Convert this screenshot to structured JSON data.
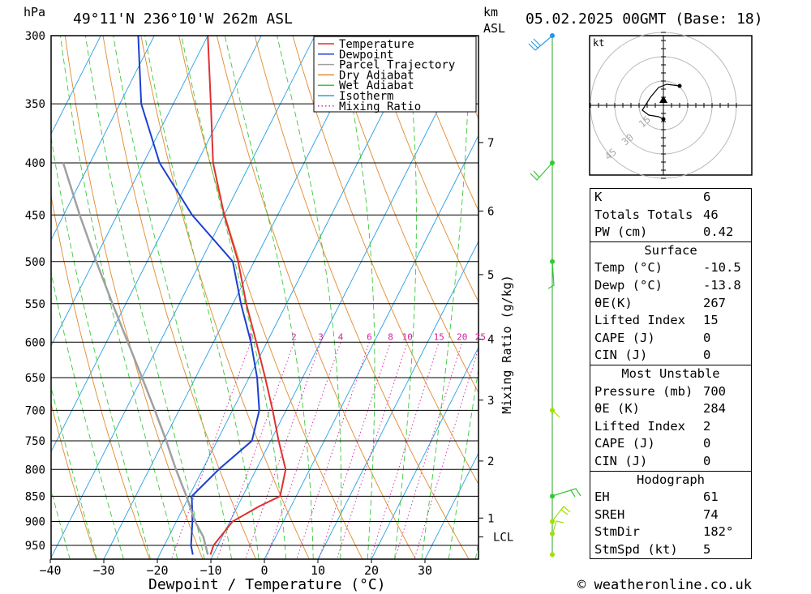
{
  "header": {
    "hpa_label": "hPa",
    "location": "49°11'N 236°10'W 262m ASL",
    "km_label": "km",
    "asl_label": "ASL",
    "datetime": "05.02.2025 00GMT (Base: 18)"
  },
  "chart_data": {
    "type": "skew-t",
    "pressure_levels": [
      300,
      350,
      400,
      450,
      500,
      550,
      600,
      650,
      700,
      750,
      800,
      850,
      900,
      950
    ],
    "temperature_ticks": [
      -40,
      -30,
      -20,
      -10,
      0,
      10,
      20,
      30
    ],
    "xlabel": "Dewpoint / Temperature (°C)",
    "right_axis_label": "Mixing Ratio (g/kg)",
    "km_ticks": [
      {
        "km": "7",
        "p": 382
      },
      {
        "km": "6",
        "p": 446
      },
      {
        "km": "5",
        "p": 515
      },
      {
        "km": "4",
        "p": 596
      },
      {
        "km": "3",
        "p": 684
      },
      {
        "km": "2",
        "p": 785
      },
      {
        "km": "1",
        "p": 893
      }
    ],
    "lcl": {
      "label": "LCL",
      "p": 932
    },
    "mixing_ratio_labels": [
      "1",
      "2",
      "3",
      "4",
      "6",
      "8",
      "10",
      "15",
      "20",
      "25"
    ],
    "legend": [
      "Temperature",
      "Dewpoint",
      "Parcel Trajectory",
      "Dry Adiabat",
      "Wet Adiabat",
      "Isotherm",
      "Mixing Ratio"
    ],
    "series": [
      {
        "name": "Temperature",
        "color": "#e03030",
        "points": [
          [
            970,
            -10.5
          ],
          [
            950,
            -10.8
          ],
          [
            900,
            -9.5
          ],
          [
            870,
            -6
          ],
          [
            850,
            -3
          ],
          [
            800,
            -4.5
          ],
          [
            750,
            -8.5
          ],
          [
            700,
            -12.5
          ],
          [
            650,
            -17
          ],
          [
            600,
            -22
          ],
          [
            550,
            -27.5
          ],
          [
            500,
            -33
          ],
          [
            450,
            -40
          ],
          [
            400,
            -47
          ],
          [
            350,
            -53
          ],
          [
            300,
            -60
          ]
        ]
      },
      {
        "name": "Dewpoint",
        "color": "#1c3fd0",
        "points": [
          [
            970,
            -13.8
          ],
          [
            950,
            -15
          ],
          [
            900,
            -17
          ],
          [
            850,
            -19.5
          ],
          [
            800,
            -17
          ],
          [
            750,
            -13.5
          ],
          [
            700,
            -15
          ],
          [
            650,
            -18.5
          ],
          [
            600,
            -23
          ],
          [
            550,
            -28.5
          ],
          [
            500,
            -34
          ],
          [
            450,
            -46
          ],
          [
            400,
            -57
          ],
          [
            350,
            -66
          ],
          [
            300,
            -73
          ]
        ]
      },
      {
        "name": "Parcel Trajectory",
        "color": "#a0a0a0",
        "points": [
          [
            970,
            -11
          ],
          [
            932,
            -13.5
          ],
          [
            900,
            -16.5
          ],
          [
            850,
            -20.5
          ],
          [
            800,
            -25
          ],
          [
            750,
            -29.5
          ],
          [
            700,
            -34.5
          ],
          [
            650,
            -40
          ],
          [
            600,
            -46
          ],
          [
            550,
            -52.5
          ],
          [
            500,
            -59.5
          ],
          [
            450,
            -67
          ],
          [
            400,
            -75
          ]
        ]
      }
    ],
    "winds": [
      {
        "p": 300,
        "color": "#1e90ff"
      },
      {
        "p": 400,
        "color": "#2ecc2e"
      },
      {
        "p": 500,
        "color": "#2ecc2e"
      },
      {
        "p": 700,
        "color": "#a0e000"
      },
      {
        "p": 850,
        "color": "#2ecc2e"
      },
      {
        "p": 900,
        "color": "#a0e000"
      },
      {
        "p": 925,
        "color": "#a0e000"
      },
      {
        "p": 970,
        "color": "#a0e000"
      }
    ]
  },
  "hodograph": {
    "unit_label": "kt",
    "ring_labels": [
      "15",
      "30",
      "45"
    ]
  },
  "indices": {
    "basic": [
      {
        "label": "K",
        "value": "6"
      },
      {
        "label": "Totals Totals",
        "value": "46"
      },
      {
        "label": "PW (cm)",
        "value": "0.42"
      }
    ],
    "surface": {
      "title": "Surface",
      "rows": [
        {
          "label": "Temp (°C)",
          "value": "-10.5"
        },
        {
          "label": "Dewp (°C)",
          "value": "-13.8"
        },
        {
          "label": "θE(K)",
          "value": "267"
        },
        {
          "label": "Lifted Index",
          "value": "15"
        },
        {
          "label": "CAPE (J)",
          "value": "0"
        },
        {
          "label": "CIN (J)",
          "value": "0"
        }
      ]
    },
    "most_unstable": {
      "title": "Most Unstable",
      "rows": [
        {
          "label": "Pressure (mb)",
          "value": "700"
        },
        {
          "label": "θE (K)",
          "value": "284"
        },
        {
          "label": "Lifted Index",
          "value": "2"
        },
        {
          "label": "CAPE (J)",
          "value": "0"
        },
        {
          "label": "CIN (J)",
          "value": "0"
        }
      ]
    },
    "hodograph": {
      "title": "Hodograph",
      "rows": [
        {
          "label": "EH",
          "value": "61"
        },
        {
          "label": "SREH",
          "value": "74"
        },
        {
          "label": "StmDir",
          "value": "182°"
        },
        {
          "label": "StmSpd (kt)",
          "value": "5"
        }
      ]
    }
  },
  "footer": {
    "copyright": "© weatheronline.co.uk"
  }
}
